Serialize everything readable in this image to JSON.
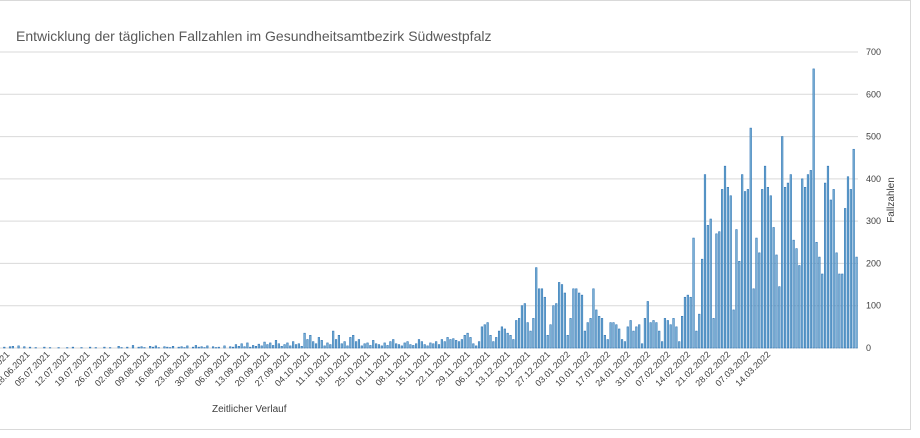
{
  "chart_data": {
    "type": "bar",
    "title": "Entwicklung der täglichen Fallzahlen im Gesundheitsamtbezirk Südwestpfalz",
    "xlabel": "Zeitlicher Verlauf",
    "ylabel": "Fallzahlen",
    "ylim": [
      0,
      700
    ],
    "yticks": [
      0,
      100,
      200,
      300,
      400,
      500,
      600,
      700
    ],
    "yaxis_position": "right",
    "grid": true,
    "legend": "none",
    "x_start": "2021-06-19",
    "xtick_labels": [
      "21.06.2021",
      "28.06.2021",
      "05.07.2021",
      "12.07.2021",
      "19.07.2021",
      "26.07.2021",
      "02.08.2021",
      "09.08.2021",
      "16.08.2021",
      "23.08.2021",
      "30.08.2021",
      "06.09.2021",
      "13.09.2021",
      "20.09.2021",
      "27.09.2021",
      "04.10.2021",
      "11.10.2021",
      "18.10.2021",
      "25.10.2021",
      "01.11.2021",
      "08.11.2021",
      "15.11.2021",
      "22.11.2021",
      "29.11.2021",
      "06.12.2021",
      "13.12.2021",
      "20.12.2021",
      "27.12.2021",
      "03.01.2022",
      "10.01.2022",
      "17.01.2022",
      "24.01.2022",
      "31.01.2022",
      "07.02.2022",
      "14.02.2022",
      "21.02.2022",
      "28.02.2022",
      "07.03.2022",
      "14.03.2022"
    ],
    "values": [
      0,
      2,
      0,
      3,
      4,
      0,
      5,
      0,
      3,
      0,
      2,
      0,
      1,
      0,
      0,
      2,
      0,
      1,
      0,
      0,
      1,
      0,
      0,
      1,
      0,
      2,
      0,
      0,
      1,
      0,
      0,
      2,
      0,
      1,
      0,
      0,
      2,
      0,
      1,
      0,
      0,
      4,
      1,
      0,
      2,
      0,
      6,
      0,
      2,
      3,
      1,
      0,
      4,
      2,
      5,
      1,
      0,
      3,
      2,
      1,
      4,
      0,
      2,
      3,
      1,
      5,
      0,
      2,
      6,
      2,
      3,
      1,
      5,
      0,
      3,
      1,
      2,
      0,
      5,
      0,
      3,
      2,
      8,
      4,
      10,
      3,
      12,
      2,
      6,
      4,
      9,
      5,
      14,
      8,
      12,
      6,
      18,
      10,
      4,
      8,
      12,
      5,
      15,
      8,
      10,
      4,
      35,
      20,
      30,
      15,
      10,
      25,
      18,
      5,
      12,
      8,
      40,
      20,
      30,
      10,
      15,
      5,
      25,
      30,
      15,
      20,
      5,
      10,
      12,
      6,
      18,
      10,
      8,
      5,
      12,
      6,
      15,
      20,
      10,
      8,
      5,
      12,
      15,
      8,
      6,
      10,
      20,
      15,
      8,
      5,
      12,
      10,
      15,
      8,
      20,
      15,
      25,
      20,
      22,
      18,
      15,
      20,
      30,
      35,
      25,
      10,
      5,
      15,
      50,
      55,
      60,
      30,
      15,
      25,
      40,
      50,
      45,
      35,
      30,
      20,
      65,
      70,
      100,
      105,
      60,
      40,
      70,
      190,
      140,
      140,
      120,
      30,
      55,
      100,
      105,
      155,
      150,
      130,
      30,
      70,
      140,
      140,
      130,
      125,
      40,
      60,
      70,
      140,
      90,
      75,
      70,
      30,
      20,
      60,
      60,
      55,
      45,
      20,
      15,
      50,
      65,
      40,
      50,
      55,
      10,
      70,
      110,
      60,
      65,
      60,
      40,
      15,
      70,
      65,
      55,
      70,
      50,
      15,
      75,
      120,
      125,
      120,
      260,
      40,
      80,
      210,
      410,
      290,
      305,
      70,
      270,
      275,
      375,
      430,
      380,
      360,
      90,
      280,
      205,
      410,
      370,
      375,
      520,
      140,
      260,
      225,
      375,
      430,
      380,
      360,
      285,
      220,
      145,
      500,
      380,
      390,
      410,
      255,
      235,
      195,
      400,
      380,
      410,
      420,
      660,
      250,
      215,
      175,
      390,
      430,
      350,
      375,
      225,
      175,
      175,
      330,
      405,
      375,
      470,
      215
    ]
  }
}
